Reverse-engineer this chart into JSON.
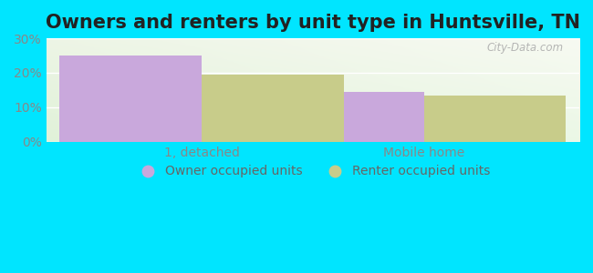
{
  "title": "Owners and renters by unit type in Huntsville, TN",
  "categories": [
    "1, detached",
    "Mobile home"
  ],
  "owner_values": [
    25,
    14.5
  ],
  "renter_values": [
    19.5,
    13.5
  ],
  "owner_color": "#c9a8dc",
  "renter_color": "#c8cc8a",
  "ylim": [
    0,
    30
  ],
  "yticks": [
    0,
    10,
    20,
    30
  ],
  "ytick_labels": [
    "0%",
    "10%",
    "20%",
    "30%"
  ],
  "bar_width": 0.32,
  "legend_owner": "Owner occupied units",
  "legend_renter": "Renter occupied units",
  "outer_bg": "#00e5ff",
  "watermark": "City-Data.com",
  "title_fontsize": 15,
  "axis_label_fontsize": 10,
  "legend_fontsize": 10,
  "group_positions": [
    0.25,
    0.75
  ]
}
